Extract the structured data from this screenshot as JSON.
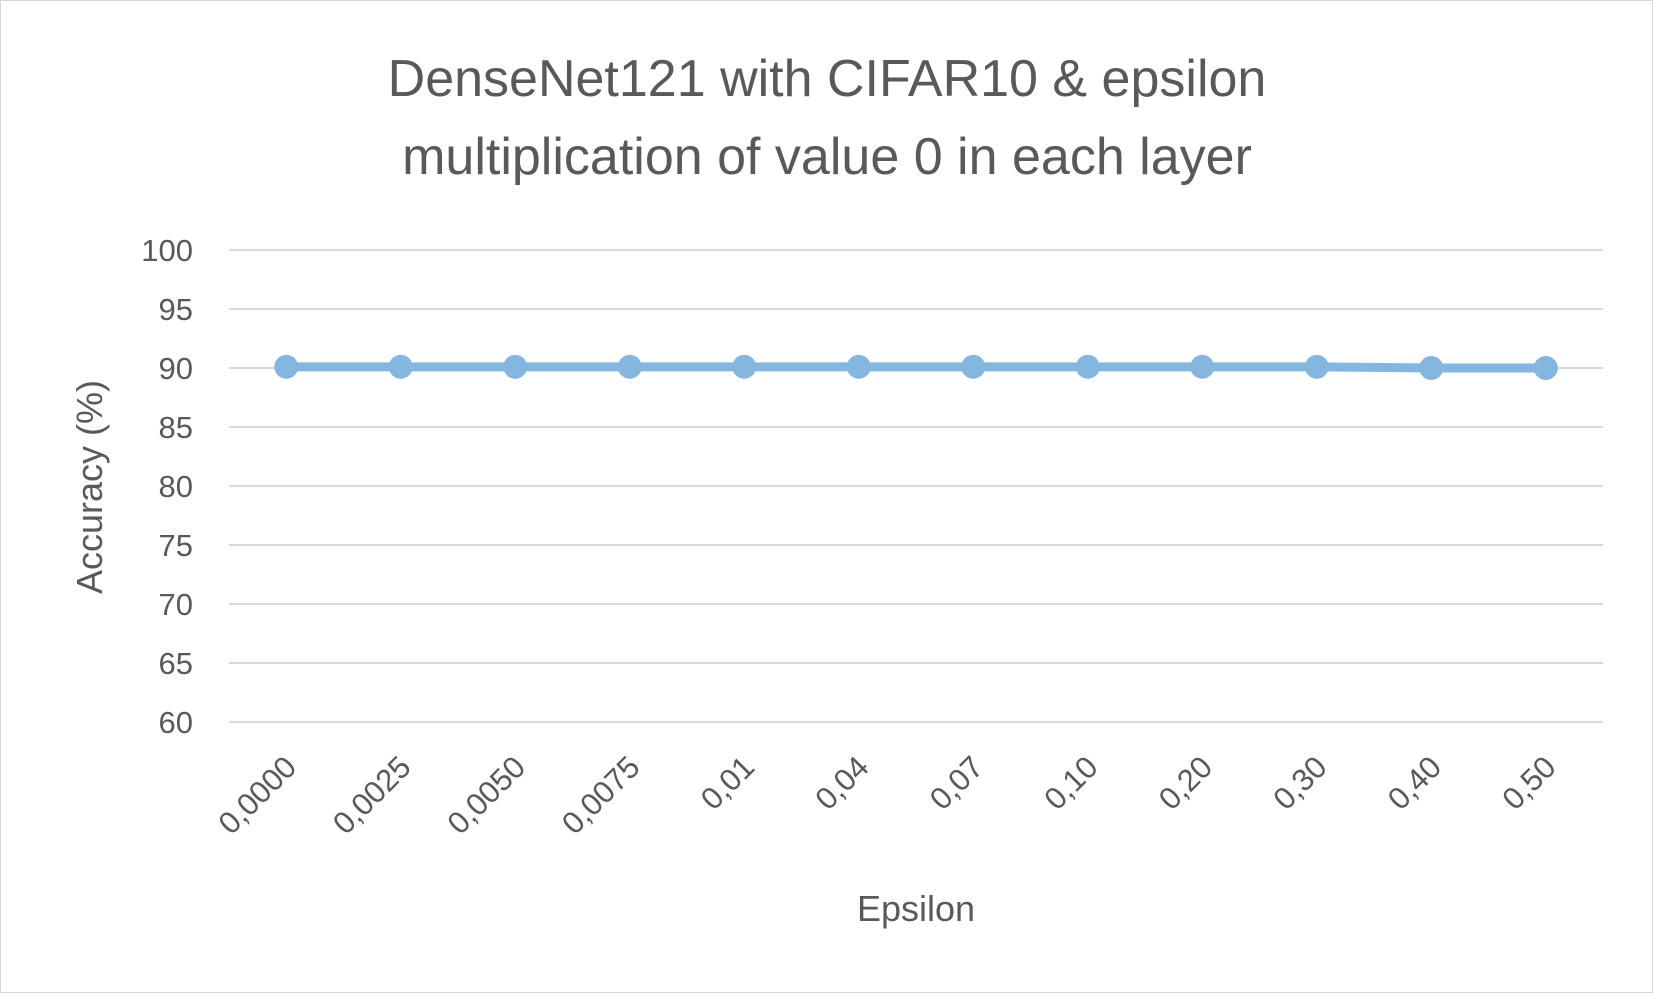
{
  "chart_data": {
    "type": "line",
    "title_lines": [
      "DenseNet121 with CIFAR10 & epsilon",
      "multiplication of value 0 in each layer"
    ],
    "xlabel": "Epsilon",
    "ylabel": "Accuracy (%)",
    "categories": [
      "0,0000",
      "0,0025",
      "0,0050",
      "0,0075",
      "0,01",
      "0,04",
      "0,07",
      "0,10",
      "0,20",
      "0,30",
      "0,40",
      "0,50"
    ],
    "series": [
      {
        "color": "#84b6e0",
        "values": [
          90.1,
          90.1,
          90.1,
          90.1,
          90.1,
          90.1,
          90.1,
          90.1,
          90.1,
          90.1,
          90.0,
          90.0
        ]
      }
    ],
    "ylim": [
      60,
      100
    ],
    "yticks": [
      60,
      65,
      70,
      75,
      80,
      85,
      90,
      95,
      100
    ],
    "grid": true,
    "legend": "none"
  }
}
